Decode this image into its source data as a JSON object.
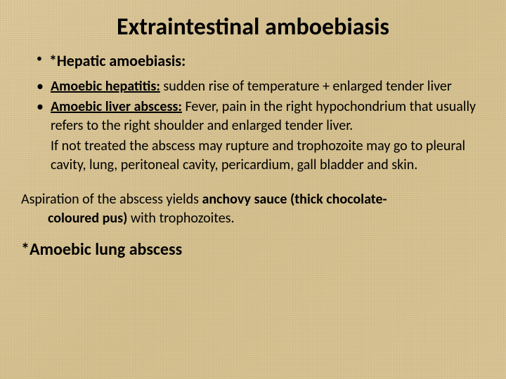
{
  "background_color": "#d9c89a",
  "text_color": "#000000",
  "font_family": "Calibri",
  "title": {
    "text": "Extraintestinal amboebiasis",
    "fontsize": 34,
    "weight": "bold",
    "align": "center"
  },
  "main_bullet": {
    "label": "*Hepatic amoebiasis:",
    "fontsize": 22,
    "weight": "bold"
  },
  "sub_bullets": [
    {
      "lead": "Amoebic hepatitis:",
      "rest": " sudden rise of temperature + enlarged tender liver",
      "fontsize": 20
    },
    {
      "lead": "Amoebic liver abscess:",
      "rest": " Fever, pain in the right hypochondrium that usually refers to the right shoulder and enlarged tender liver.",
      "fontsize": 20
    }
  ],
  "followup": {
    "text": "If not treated the abscess may rupture and trophozoite may go to pleural cavity, lung, peritoneal cavity, pericardium, gall bladder and skin.",
    "fontsize": 20
  },
  "aspiration": {
    "line1": "Aspiration of the abscess yields ",
    "bold1": "anchovy sauce (thick chocolate-",
    "bold2": "coloured pus)",
    "line2": " with trophozoites.",
    "fontsize": 20
  },
  "final": {
    "text": "*Amoebic lung abscess",
    "fontsize": 24,
    "weight": "bold"
  },
  "bullet_glyph": "•"
}
